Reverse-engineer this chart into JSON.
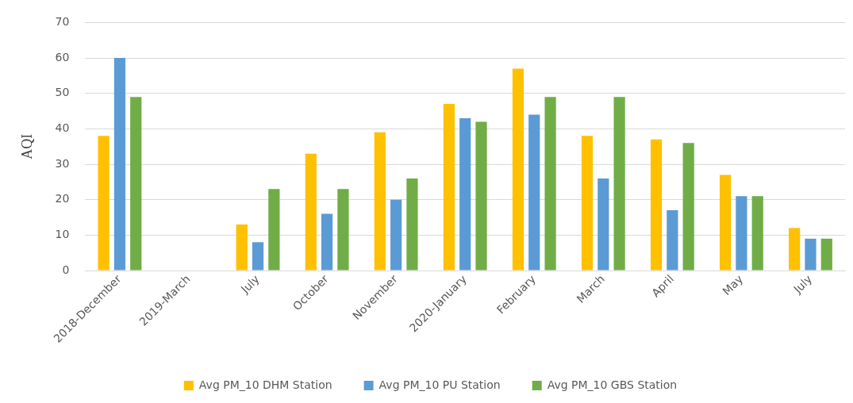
{
  "chart_data": {
    "type": "bar",
    "ylabel": "AQI",
    "categories": [
      "2018-December",
      "2019-March",
      "July",
      "October",
      "November",
      "2020-January",
      "February",
      "March",
      "April",
      "May",
      "July"
    ],
    "series": [
      {
        "name": "Avg PM_10 DHM Station",
        "color": "#ffc000",
        "values": [
          38,
          null,
          13,
          33,
          39,
          47,
          57,
          38,
          37,
          27,
          12
        ]
      },
      {
        "name": "Avg PM_10 PU Station",
        "color": "#5b9bd5",
        "values": [
          60,
          null,
          8,
          16,
          20,
          43,
          44,
          26,
          17,
          21,
          9
        ]
      },
      {
        "name": "Avg PM_10 GBS Station",
        "color": "#70ad47",
        "values": [
          49,
          null,
          23,
          23,
          26,
          42,
          49,
          49,
          36,
          21,
          9
        ]
      }
    ],
    "ylim": [
      0,
      70
    ],
    "yticks": [
      0,
      10,
      20,
      30,
      40,
      50,
      60,
      70
    ],
    "grid": "y",
    "legend": "bottom"
  }
}
